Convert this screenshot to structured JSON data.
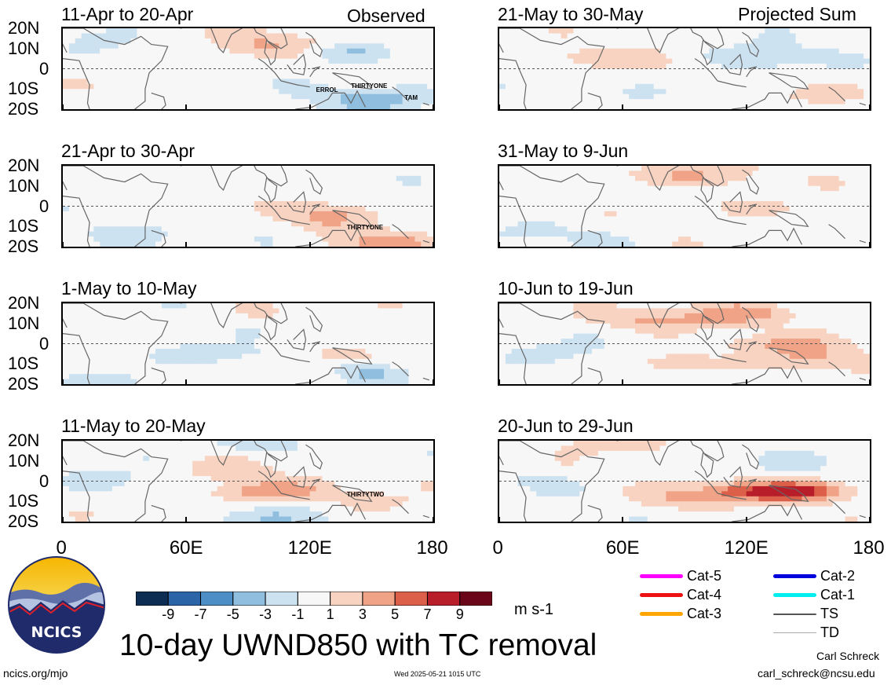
{
  "title": "10-day UWND850 with TC removal",
  "units": "m s-1",
  "footer": {
    "left_url": "ncics.org/mjo",
    "timestamp": "Wed 2025-05-21 1015 UTC",
    "author": "Carl Schreck",
    "email": "carl_schreck@ncsu.edu",
    "logo_text": "NCICS"
  },
  "column_labels": {
    "left": "Observed",
    "right": "Projected Sum"
  },
  "y_ticks": [
    "20N",
    "10N",
    "0",
    "10S",
    "20S"
  ],
  "x_ticks": [
    "0",
    "60E",
    "120E",
    "180"
  ],
  "colorbar": {
    "labels": [
      "-9",
      "-7",
      "-5",
      "-3",
      "-1",
      "1",
      "3",
      "5",
      "7",
      "9"
    ],
    "colors": [
      "#0d2d52",
      "#2b65a8",
      "#4d8ec6",
      "#90bedf",
      "#cde2f1",
      "#f7f7f7",
      "#f8d3c1",
      "#f0a386",
      "#dc6049",
      "#b81e2a",
      "#6b0519"
    ]
  },
  "tc_legend": [
    {
      "label": "Cat-5",
      "color": "#ff00ff"
    },
    {
      "label": "Cat-4",
      "color": "#ee1111"
    },
    {
      "label": "Cat-3",
      "color": "#ffa500"
    },
    {
      "label": "Cat-2",
      "color": "#0000dd"
    },
    {
      "label": "Cat-1",
      "color": "#00eeee"
    },
    {
      "label": "TS",
      "color": "#555555"
    },
    {
      "label": "TD",
      "color": "#aaaaaa"
    }
  ],
  "panels": [
    {
      "period": "11-Apr to 20-Apr",
      "column": "Observed",
      "storms": [
        "ERROL",
        "THIRTYONE",
        "TAM"
      ]
    },
    {
      "period": "21-Apr to 30-Apr",
      "column": "Observed",
      "storms": [
        "THIRTYONE"
      ]
    },
    {
      "period": "1-May to 10-May",
      "column": "Observed",
      "storms": []
    },
    {
      "period": "11-May to 20-May",
      "column": "Observed",
      "storms": [
        "THIRTYTWO"
      ]
    },
    {
      "period": "21-May to 30-May",
      "column": "Projected Sum",
      "storms": []
    },
    {
      "period": "31-May to 9-Jun",
      "column": "Projected Sum",
      "storms": []
    },
    {
      "period": "10-Jun to 19-Jun",
      "column": "Projected Sum",
      "storms": []
    },
    {
      "period": "20-Jun to 29-Jun",
      "column": "Projected Sum",
      "storms": []
    }
  ],
  "chart_data": {
    "type": "heatmap",
    "variable": "UWND850",
    "units": "m s-1",
    "x_range": [
      0,
      180
    ],
    "y_range": [
      -20,
      20
    ],
    "x_ticks": [
      "0",
      "60E",
      "120E",
      "180"
    ],
    "y_ticks": [
      "20N",
      "10N",
      "0",
      "10S",
      "20S"
    ],
    "levels": [
      -9,
      -7,
      -5,
      -3,
      -1,
      1,
      3,
      5,
      7,
      9
    ]
  }
}
